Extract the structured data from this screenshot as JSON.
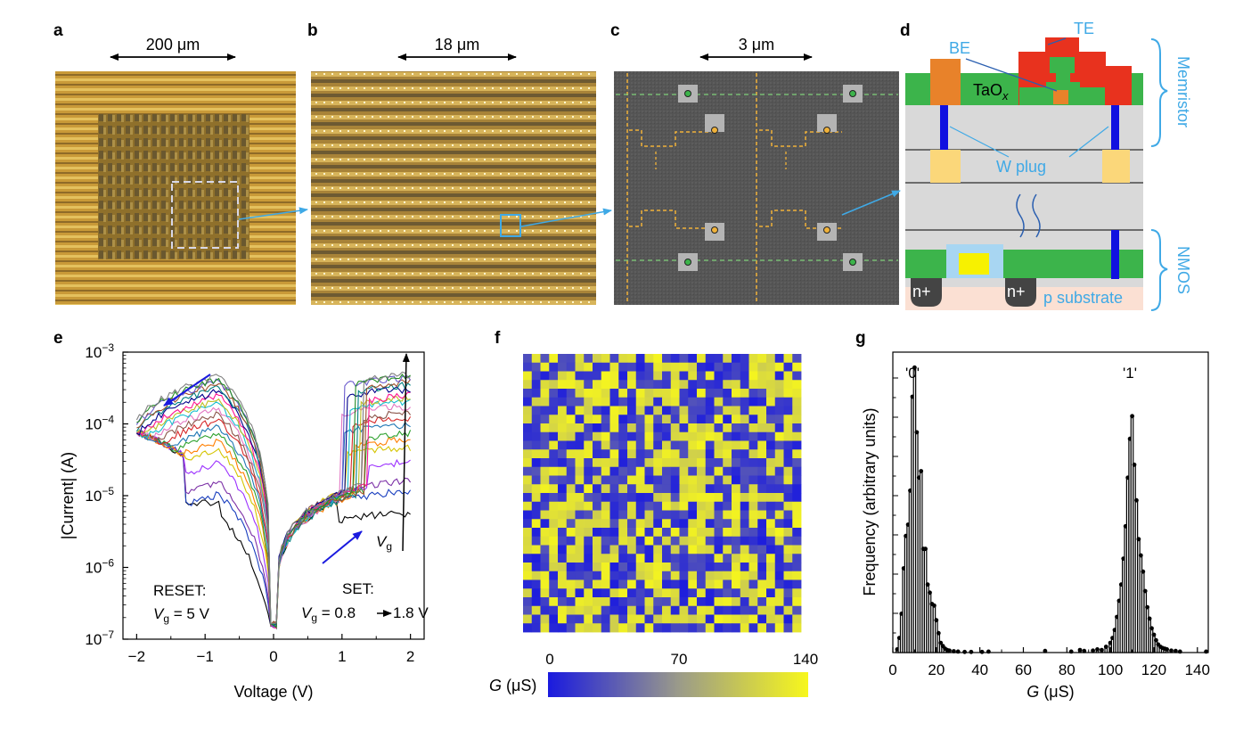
{
  "panels": {
    "a": {
      "label": "a",
      "scale_bar": "200 μm"
    },
    "b": {
      "label": "b",
      "scale_bar": "18 μm"
    },
    "c": {
      "label": "c",
      "scale_bar": "3 μm"
    },
    "d": {
      "label": "d",
      "te": "TE",
      "be": "BE",
      "taox": "TaO",
      "taox_sub": "x",
      "wplug": "W plug",
      "nplus_left": "n+",
      "nplus_right": "n+",
      "psub": "p substrate",
      "memristor": "Memristor",
      "nmos": "NMOS"
    },
    "e": {
      "label": "e"
    },
    "f": {
      "label": "f"
    },
    "g": {
      "label": "g"
    }
  },
  "colors": {
    "sky": "#3fa9e6",
    "green": "#3cb44b",
    "orange": "#e8822a",
    "red": "#e8321e",
    "blue": "#1a1adf",
    "yellow": "#f7f71c",
    "grey": "#d9d9d9",
    "tan": "#c9a448"
  },
  "chart_data": [
    {
      "type": "line",
      "panel": "e",
      "xlabel": "Voltage (V)",
      "ylabel": "|Current| (A)",
      "xlim": [
        -2.2,
        2.2
      ],
      "ylim": [
        1e-07,
        0.001
      ],
      "yscale": "log",
      "xticks": [
        "−2",
        "−1",
        "0",
        "1",
        "2"
      ],
      "yticks": [
        {
          "b": "10",
          "e": "−3"
        },
        {
          "b": "10",
          "e": "−4"
        },
        {
          "b": "10",
          "e": "−5"
        },
        {
          "b": "10",
          "e": "−6"
        },
        {
          "b": "10",
          "e": "−7"
        }
      ],
      "annotations": {
        "reset": "RESET:",
        "reset_vg": "V",
        "reset_vg_sub": "g",
        "reset_val": " = 5 V",
        "set": "SET:",
        "set_vg": "V",
        "set_vg_sub": "g",
        "set_val": " = 0.8",
        "set_val2": "1.8 V",
        "vg_arrow": "V",
        "vg_arrow_sub": "g"
      },
      "series": [
        {
          "color": "#000000",
          "ion": 5.5e-06
        },
        {
          "color": "#1a3fbf",
          "ion": 1.1e-05
        },
        {
          "color": "#7b2fa6",
          "ion": 1.6e-05
        },
        {
          "color": "#9b30ff",
          "ion": 3e-05
        },
        {
          "color": "#d4c400",
          "ion": 4.6e-05
        },
        {
          "color": "#ff7f00",
          "ion": 6e-05
        },
        {
          "color": "#2ca02c",
          "ion": 7.5e-05
        },
        {
          "color": "#1f77b4",
          "ion": 9.5e-05
        },
        {
          "color": "#d62728",
          "ion": 0.00012
        },
        {
          "color": "#8c564b",
          "ion": 0.000145
        },
        {
          "color": "#e377c2",
          "ion": 0.00017
        },
        {
          "color": "#17becf",
          "ion": 0.0002
        },
        {
          "color": "#bcbd22",
          "ion": 0.00023
        },
        {
          "color": "#ff1493",
          "ion": 0.00026
        },
        {
          "color": "#00008b",
          "ion": 0.0003
        },
        {
          "color": "#008080",
          "ion": 0.00034
        },
        {
          "color": "#a0522d",
          "ion": 0.00038
        },
        {
          "color": "#6a5acd",
          "ion": 0.00042
        },
        {
          "color": "#228b22",
          "ion": 0.00045
        },
        {
          "color": "#808080",
          "ion": 0.00049
        }
      ]
    },
    {
      "type": "heatmap",
      "panel": "f",
      "colorbar_label": "G",
      "colorbar_unit": " (μS)",
      "colorbar_ticks": [
        "0",
        "70",
        "140"
      ],
      "range": [
        0,
        140
      ],
      "rows": 32,
      "cols": 32
    },
    {
      "type": "bar",
      "panel": "g",
      "xlabel": "G",
      "xlabel_unit": " (μS)",
      "ylabel": "Frequency (arbitrary units)",
      "xlim": [
        0,
        145
      ],
      "xticks": [
        "0",
        "20",
        "40",
        "60",
        "80",
        "100",
        "120",
        "140"
      ],
      "labels": {
        "zero": "'0'",
        "one": "'1'"
      },
      "bins": [
        [
          2,
          10
        ],
        [
          3,
          45
        ],
        [
          4,
          120
        ],
        [
          5,
          260
        ],
        [
          6,
          360
        ],
        [
          7,
          395
        ],
        [
          8,
          500
        ],
        [
          9,
          790
        ],
        [
          10,
          880
        ],
        [
          11,
          680
        ],
        [
          12,
          540
        ],
        [
          13,
          560
        ],
        [
          14,
          320
        ],
        [
          15,
          320
        ],
        [
          16,
          210
        ],
        [
          17,
          185
        ],
        [
          18,
          150
        ],
        [
          19,
          145
        ],
        [
          20,
          100
        ],
        [
          21,
          60
        ],
        [
          22,
          30
        ],
        [
          23,
          20
        ],
        [
          24,
          12
        ],
        [
          25,
          8
        ],
        [
          26,
          6
        ],
        [
          28,
          4
        ],
        [
          30,
          3
        ],
        [
          33,
          2
        ],
        [
          36,
          2
        ],
        [
          41,
          2
        ],
        [
          44,
          3
        ],
        [
          70,
          5
        ],
        [
          82,
          3
        ],
        [
          86,
          8
        ],
        [
          88,
          5
        ],
        [
          92,
          6
        ],
        [
          94,
          10
        ],
        [
          96,
          8
        ],
        [
          98,
          18
        ],
        [
          100,
          30
        ],
        [
          101,
          45
        ],
        [
          102,
          70
        ],
        [
          103,
          110
        ],
        [
          104,
          160
        ],
        [
          105,
          210
        ],
        [
          106,
          290
        ],
        [
          107,
          390
        ],
        [
          108,
          540
        ],
        [
          109,
          660
        ],
        [
          110,
          730
        ],
        [
          111,
          580
        ],
        [
          112,
          470
        ],
        [
          113,
          350
        ],
        [
          114,
          300
        ],
        [
          115,
          250
        ],
        [
          116,
          190
        ],
        [
          117,
          140
        ],
        [
          118,
          105
        ],
        [
          119,
          75
        ],
        [
          120,
          55
        ],
        [
          121,
          38
        ],
        [
          122,
          25
        ],
        [
          123,
          18
        ],
        [
          124,
          14
        ],
        [
          125,
          12
        ],
        [
          126,
          10
        ],
        [
          128,
          6
        ],
        [
          130,
          5
        ],
        [
          132,
          3
        ],
        [
          144,
          3
        ]
      ]
    }
  ]
}
